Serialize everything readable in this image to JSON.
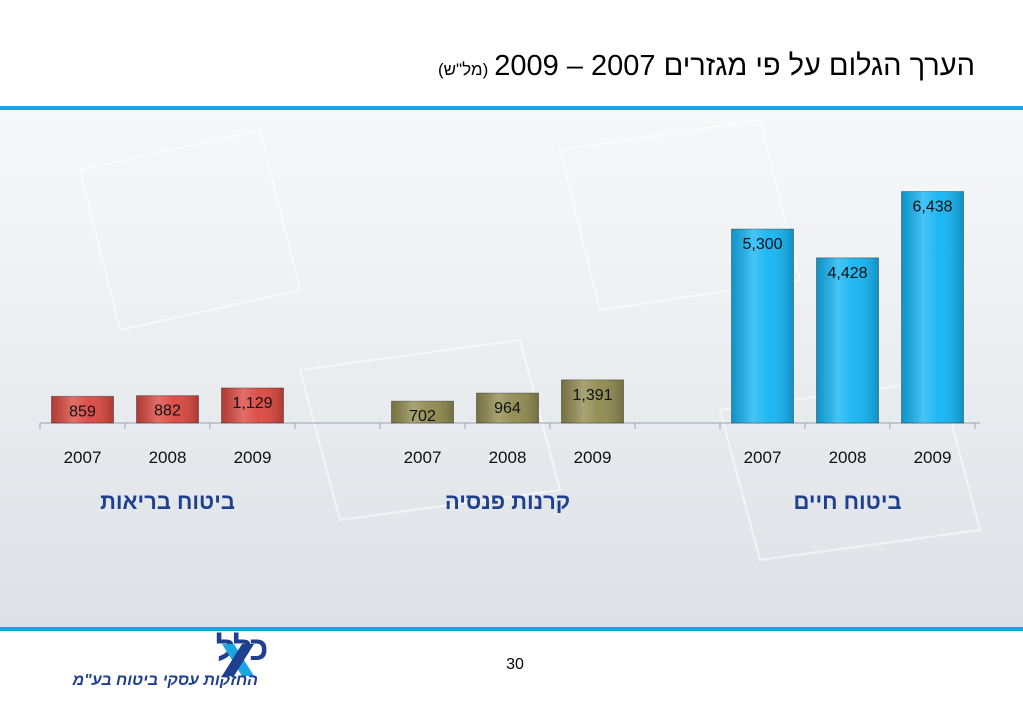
{
  "header": {
    "title": "הערך הגלום על פי מגזרים 2007 – 2009",
    "unit": "(מל\"ש)"
  },
  "chart_data": {
    "type": "bar",
    "groups": [
      {
        "name": "ביטוח בריאות",
        "color": "#d9473f",
        "categories": [
          "2007",
          "2008",
          "2009"
        ],
        "values": [
          859,
          882,
          1129
        ],
        "labels": [
          "859",
          "882",
          "1,129"
        ]
      },
      {
        "name": "קרנות פנסיה",
        "color": "#8f8a4f",
        "categories": [
          "2007",
          "2008",
          "2009"
        ],
        "values": [
          702,
          964,
          1391
        ],
        "labels": [
          "702",
          "964",
          "1,391"
        ]
      },
      {
        "name": "ביטוח חיים",
        "color": "#12b4f3",
        "categories": [
          "2007",
          "2008",
          "2009"
        ],
        "values": [
          5300,
          4428,
          6438
        ],
        "labels": [
          "5,300",
          "4,428",
          "6,438"
        ]
      }
    ],
    "group_label_color": "#1f3f8f"
  },
  "footer": {
    "page_number": "30",
    "logo_text": "כלל",
    "logo_subtext": "החזקות עסקי ביטוח בע\"מ",
    "accent_color": "#1aa6e3"
  }
}
